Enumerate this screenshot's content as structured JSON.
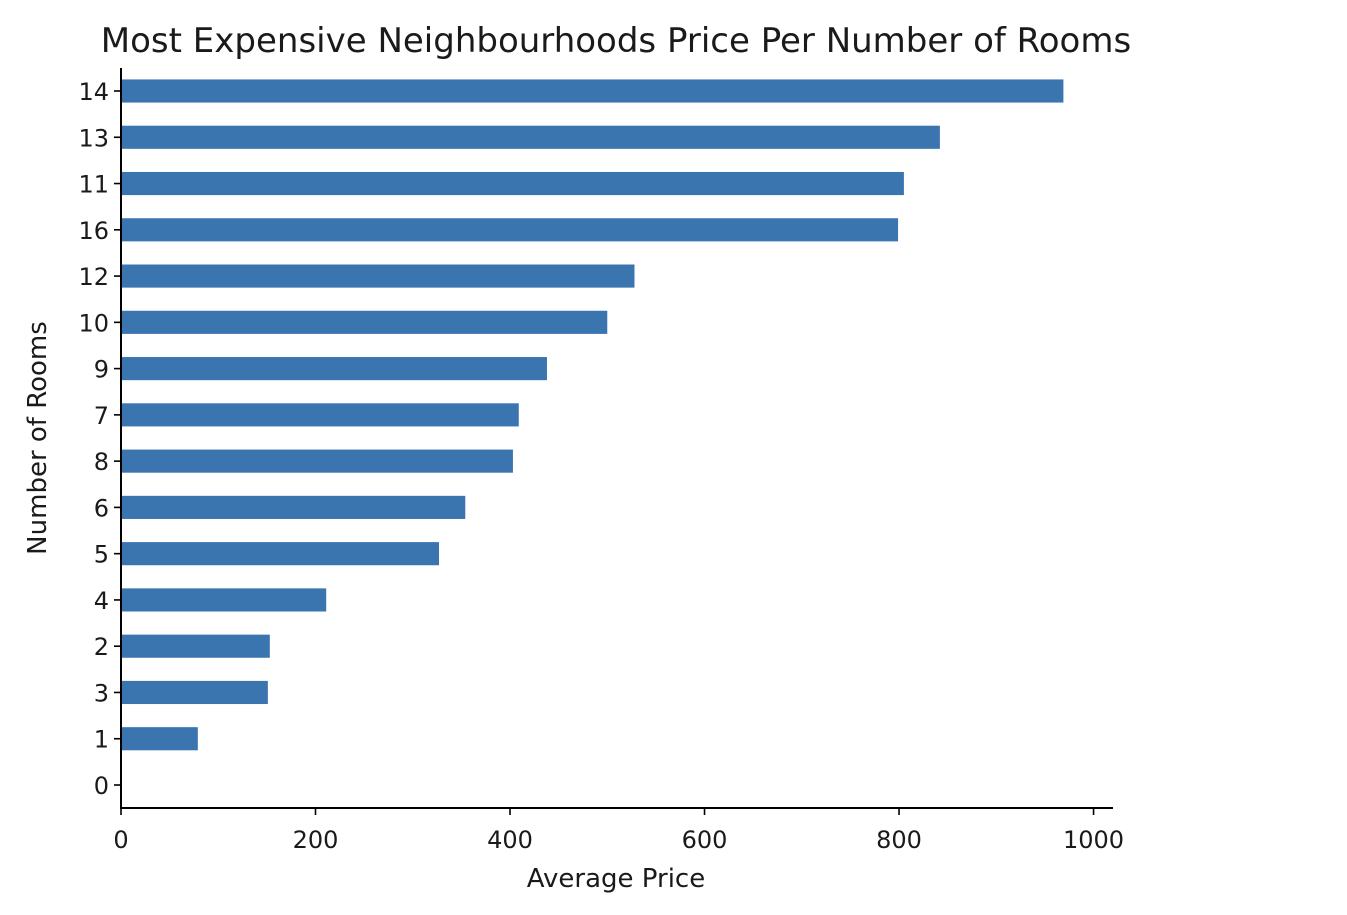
{
  "chart_data": {
    "type": "bar",
    "orientation": "horizontal",
    "title": "Most Expensive Neighbourhoods Price Per Number of Rooms",
    "xlabel": "Average Price",
    "ylabel": "Number of Rooms",
    "categories": [
      "0",
      "1",
      "3",
      "2",
      "4",
      "5",
      "6",
      "8",
      "7",
      "9",
      "10",
      "12",
      "16",
      "11",
      "13",
      "14"
    ],
    "values": [
      0,
      79,
      151,
      153,
      211,
      327,
      354,
      403,
      409,
      438,
      500,
      528,
      799,
      805,
      842,
      969
    ],
    "xlim": [
      0,
      1020
    ],
    "xticks": [
      "0",
      "200",
      "400",
      "600",
      "800",
      "1000"
    ],
    "bar_color": "#3b75af",
    "grid": false,
    "legend": "none"
  }
}
